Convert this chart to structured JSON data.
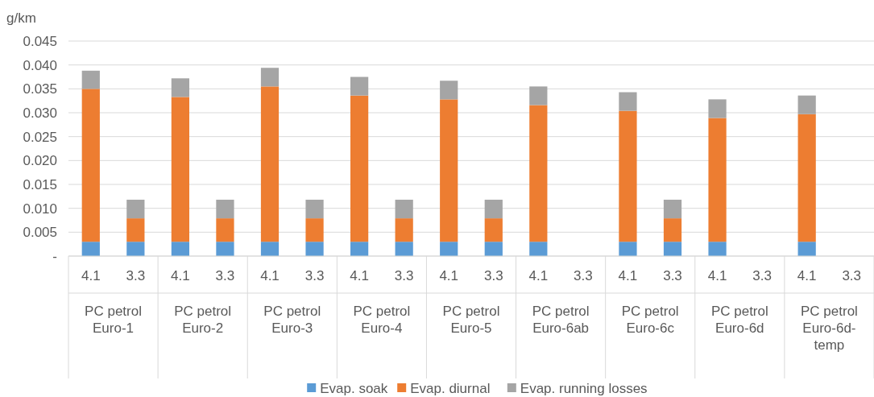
{
  "chart_data": {
    "type": "bar",
    "stacked": true,
    "ylabel": "g/km",
    "categories": [
      "4.1",
      "3.3",
      "4.1",
      "3.3",
      "4.1",
      "3.3",
      "4.1",
      "3.3",
      "4.1",
      "3.3",
      "4.1",
      "3.3",
      "4.1",
      "3.3",
      "4.1",
      "3.3",
      "4.1",
      "3.3"
    ],
    "annotations": [
      "PC petrol Euro-1",
      "PC petrol Euro-2",
      "PC petrol Euro-3",
      "PC petrol Euro-4",
      "PC petrol Euro-5",
      "PC petrol Euro-6ab",
      "PC petrol Euro-6c",
      "PC petrol Euro-6d",
      "PC petrol Euro-6d-temp"
    ],
    "series": [
      {
        "name": "Evap. soak",
        "color": "#5b9bd5",
        "values": [
          0.003,
          0.003,
          0.003,
          0.003,
          0.003,
          0.003,
          0.003,
          0.003,
          0.003,
          0.003,
          0.003,
          null,
          0.003,
          0.003,
          0.003,
          null,
          0.003,
          null
        ]
      },
      {
        "name": "Evap. diurnal",
        "color": "#ed7d31",
        "values": [
          0.032,
          0.0049,
          0.0303,
          0.0049,
          0.0325,
          0.0049,
          0.0306,
          0.0049,
          0.0298,
          0.0049,
          0.0286,
          null,
          0.0274,
          0.0049,
          0.0259,
          null,
          0.0267,
          null
        ]
      },
      {
        "name": "Evap. running losses",
        "color": "#a5a5a5",
        "values": [
          0.0038,
          0.0039,
          0.0039,
          0.0039,
          0.0039,
          0.0039,
          0.0039,
          0.0039,
          0.0039,
          0.0039,
          0.0039,
          null,
          0.0039,
          0.0039,
          0.0039,
          null,
          0.0039,
          null
        ]
      }
    ],
    "ylim": [
      0,
      0.045
    ],
    "yticks": [
      {
        "value": 0,
        "label": "-"
      },
      0.005,
      {
        "value": 0.01,
        "label": "0.010"
      },
      0.015,
      {
        "value": 0.02,
        "label": "0.020"
      },
      0.025,
      {
        "value": 0.03,
        "label": "0.030"
      },
      0.035,
      {
        "value": 0.04,
        "label": "0.040"
      },
      0.045
    ],
    "grid": "y",
    "legend": "bottom"
  }
}
